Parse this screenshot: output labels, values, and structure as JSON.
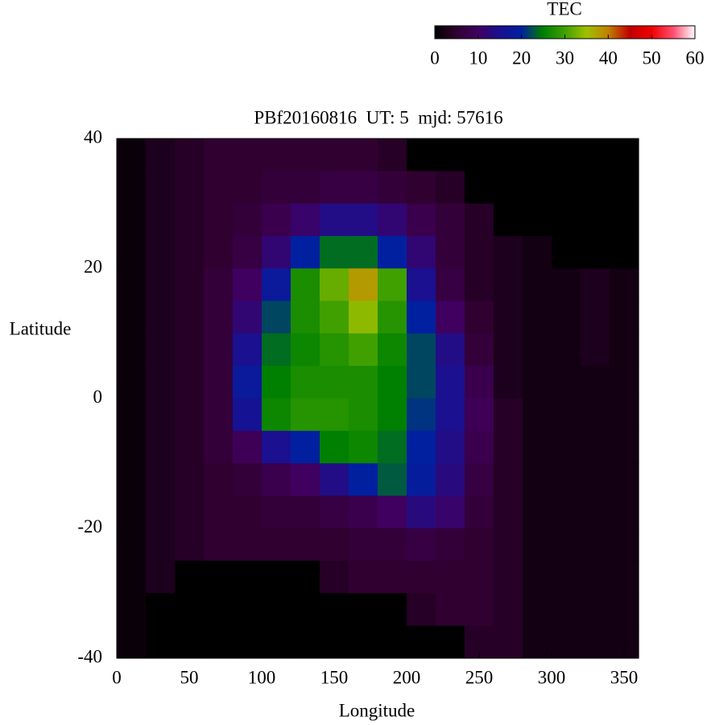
{
  "chart_data": {
    "type": "heatmap",
    "title": "PBf20160816  UT: 5  mjd: 57616",
    "xlabel": "Longitude",
    "ylabel": "Latitude",
    "colorbar_label": "TEC",
    "xlim": [
      0,
      360
    ],
    "ylim": [
      -40,
      40
    ],
    "zlim": [
      0,
      60
    ],
    "xticks": [
      0,
      50,
      100,
      150,
      200,
      250,
      300,
      350
    ],
    "yticks": [
      -40,
      -20,
      0,
      20,
      40
    ],
    "zticks": [
      0,
      10,
      20,
      30,
      40,
      50,
      60
    ],
    "colorscale": [
      "#000000",
      "#300030",
      "#400060",
      "#1a1090",
      "#0020a0",
      "#008000",
      "#40a000",
      "#a0c000",
      "#c08000",
      "#c00000",
      "#f00000",
      "#ff5070",
      "#ffffff"
    ],
    "x": [
      10,
      30,
      50,
      70,
      90,
      110,
      130,
      150,
      170,
      190,
      210,
      230,
      250,
      270,
      290,
      310,
      330,
      350
    ],
    "y": [
      37.5,
      32.5,
      27.5,
      22.5,
      17.5,
      12.5,
      7.5,
      2.5,
      -2.5,
      -7.5,
      -12.5,
      -17.5,
      -22.5,
      -27.5,
      -32.5,
      -37.5
    ],
    "z": [
      [
        1,
        3,
        4,
        5,
        5,
        5,
        5,
        5,
        5,
        4,
        0,
        0,
        0,
        0,
        0,
        0,
        0,
        0
      ],
      [
        1,
        3,
        4,
        5,
        5,
        6,
        6,
        7,
        7,
        6,
        5,
        4,
        0,
        0,
        0,
        0,
        0,
        0
      ],
      [
        1,
        3,
        4,
        5,
        6,
        8,
        11,
        14,
        14,
        12,
        8,
        6,
        4,
        0,
        0,
        0,
        0,
        0
      ],
      [
        1,
        3,
        4,
        5,
        7,
        12,
        20,
        24,
        24,
        20,
        12,
        6,
        4,
        3,
        2,
        0,
        0,
        0
      ],
      [
        1,
        3,
        4,
        6,
        10,
        18,
        27,
        32,
        38,
        30,
        15,
        7,
        4,
        3,
        2,
        2,
        3,
        2
      ],
      [
        1,
        3,
        4,
        6,
        12,
        22,
        27,
        30,
        34,
        28,
        20,
        10,
        5,
        3,
        2,
        2,
        3,
        2
      ],
      [
        1,
        3,
        4,
        6,
        15,
        24,
        26,
        28,
        30,
        26,
        22,
        14,
        6,
        3,
        2,
        2,
        3,
        2
      ],
      [
        1,
        3,
        4,
        6,
        18,
        25,
        27,
        27,
        27,
        25,
        22,
        15,
        8,
        3,
        2,
        2,
        2,
        2
      ],
      [
        1,
        3,
        4,
        6,
        16,
        26,
        28,
        28,
        27,
        25,
        21,
        15,
        9,
        4,
        2,
        2,
        2,
        2
      ],
      [
        1,
        3,
        4,
        6,
        9,
        15,
        20,
        25,
        26,
        24,
        20,
        14,
        8,
        4,
        2,
        2,
        2,
        2
      ],
      [
        1,
        3,
        4,
        5,
        6,
        8,
        10,
        14,
        20,
        23,
        19,
        13,
        7,
        4,
        2,
        2,
        2,
        2
      ],
      [
        1,
        3,
        4,
        5,
        5,
        6,
        6,
        7,
        8,
        10,
        13,
        11,
        6,
        4,
        2,
        2,
        2,
        2
      ],
      [
        1,
        3,
        4,
        5,
        5,
        5,
        5,
        5,
        6,
        6,
        7,
        6,
        5,
        4,
        2,
        2,
        2,
        2
      ],
      [
        1,
        3,
        0,
        0,
        0,
        0,
        0,
        4,
        5,
        5,
        5,
        5,
        5,
        4,
        2,
        2,
        2,
        2
      ],
      [
        1,
        0,
        0,
        0,
        0,
        0,
        0,
        0,
        0,
        0,
        4,
        5,
        5,
        4,
        2,
        2,
        2,
        2
      ],
      [
        1,
        0,
        0,
        0,
        0,
        0,
        0,
        0,
        0,
        0,
        0,
        0,
        4,
        4,
        2,
        2,
        2,
        2
      ]
    ]
  }
}
